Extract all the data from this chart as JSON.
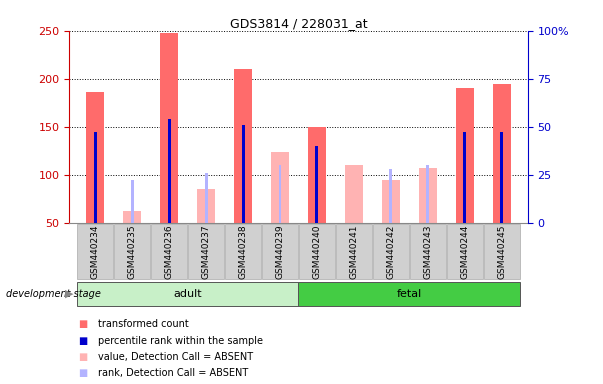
{
  "title": "GDS3814 / 228031_at",
  "samples": [
    "GSM440234",
    "GSM440235",
    "GSM440236",
    "GSM440237",
    "GSM440238",
    "GSM440239",
    "GSM440240",
    "GSM440241",
    "GSM440242",
    "GSM440243",
    "GSM440244",
    "GSM440245"
  ],
  "transformed_count": [
    186,
    62,
    248,
    85,
    210,
    124,
    150,
    110,
    95,
    107,
    190,
    195
  ],
  "percentile_rank": [
    47,
    22,
    54,
    26,
    51,
    30,
    40,
    null,
    28,
    30,
    47,
    47
  ],
  "detection_call": [
    "P",
    "A",
    "P",
    "A",
    "P",
    "A",
    "P",
    "A",
    "A",
    "A",
    "P",
    "P"
  ],
  "groups": [
    {
      "label": "adult",
      "start": 0,
      "end": 5
    },
    {
      "label": "fetal",
      "start": 6,
      "end": 11
    }
  ],
  "ylim_left": [
    50,
    250
  ],
  "ylim_right": [
    0,
    100
  ],
  "yticks_left": [
    50,
    100,
    150,
    200,
    250
  ],
  "yticks_right": [
    0,
    25,
    50,
    75,
    100
  ],
  "absent_bar_color": "#ffb3b3",
  "present_bar_color": "#ff6b6b",
  "absent_rank_color": "#b3b3ff",
  "present_rank_color": "#0000cc",
  "bar_bottom": 50,
  "background_color": "#ffffff",
  "ylabel_left_color": "#cc0000",
  "ylabel_right_color": "#0000cc",
  "adult_color": "#c8f0c8",
  "fetal_color": "#44cc44",
  "xtick_bg_color": "#d0d0d0"
}
